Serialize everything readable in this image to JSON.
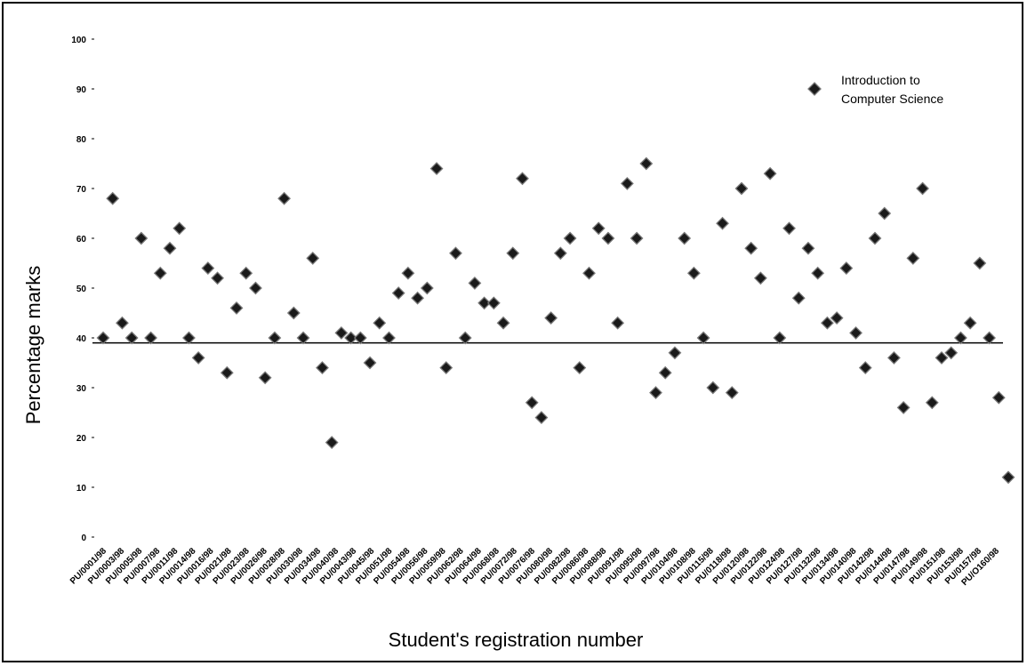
{
  "chart_data": {
    "type": "scatter",
    "title": "",
    "xlabel": "Student's registration number",
    "ylabel": "Percentage marks",
    "ylim": [
      0,
      100
    ],
    "yticks": [
      0,
      10,
      20,
      30,
      40,
      50,
      60,
      70,
      80,
      90,
      100
    ],
    "grid": false,
    "legend_position": "top-right",
    "reference_line": 39,
    "categories": [
      "PU/0001/98",
      "PU/0003/98",
      "PU/0005/98",
      "PU/0007/98",
      "PU/0011/98",
      "PU/0014/98",
      "PU/0016/98",
      "PU/0021/98",
      "PU/0023/98",
      "PU/0026/98",
      "PU/0028/98",
      "PU/0030/98",
      "PU/0034/98",
      "PU/0040/98",
      "PU/0043/98",
      "PU/0045/98",
      "PU/0051/98",
      "PU/0054/98",
      "PU/0056/98",
      "PU/0059/98",
      "PU/0062/98",
      "PU/0064/98",
      "PU/0068/98",
      "PU/0072/98",
      "PU/0076/98",
      "PU/0080/98",
      "PU/0082/98",
      "PU/0086/98",
      "PU/0088/98",
      "PU/0091/98",
      "PU/0095/98",
      "PU/0097/98",
      "PU/0104/98",
      "PU/0108/98",
      "PU/0115/98",
      "PU/0118/98",
      "PU/0120/98",
      "PU/0122/98",
      "PU/0124/98",
      "PU/0127/98",
      "PU/0132/98",
      "PU/0134/98",
      "PU/0140/98",
      "PU/0142/98",
      "PU/0144/98",
      "PU/0147/98",
      "PU/0149/98",
      "PU/0151/98",
      "PU/0153/98",
      "PU/0157/98",
      "PU/O160/98"
    ],
    "series": [
      {
        "name": "Introduction to Computer Science",
        "marker": "diamond",
        "color": "#1a1a1a",
        "points": [
          {
            "x": 1,
            "y": 40
          },
          {
            "x": 2,
            "y": 68
          },
          {
            "x": 3,
            "y": 43
          },
          {
            "x": 4,
            "y": 40
          },
          {
            "x": 5,
            "y": 60
          },
          {
            "x": 6,
            "y": 40
          },
          {
            "x": 7,
            "y": 53
          },
          {
            "x": 8,
            "y": 58
          },
          {
            "x": 9,
            "y": 62
          },
          {
            "x": 10,
            "y": 40
          },
          {
            "x": 11,
            "y": 36
          },
          {
            "x": 12,
            "y": 54
          },
          {
            "x": 13,
            "y": 52
          },
          {
            "x": 14,
            "y": 33
          },
          {
            "x": 15,
            "y": 46
          },
          {
            "x": 16,
            "y": 53
          },
          {
            "x": 17,
            "y": 50
          },
          {
            "x": 18,
            "y": 32
          },
          {
            "x": 19,
            "y": 40
          },
          {
            "x": 20,
            "y": 68
          },
          {
            "x": 21,
            "y": 45
          },
          {
            "x": 22,
            "y": 40
          },
          {
            "x": 23,
            "y": 56
          },
          {
            "x": 24,
            "y": 34
          },
          {
            "x": 25,
            "y": 19
          },
          {
            "x": 26,
            "y": 41
          },
          {
            "x": 27,
            "y": 40
          },
          {
            "x": 28,
            "y": 40
          },
          {
            "x": 29,
            "y": 35
          },
          {
            "x": 30,
            "y": 43
          },
          {
            "x": 31,
            "y": 40
          },
          {
            "x": 32,
            "y": 49
          },
          {
            "x": 33,
            "y": 53
          },
          {
            "x": 34,
            "y": 48
          },
          {
            "x": 35,
            "y": 50
          },
          {
            "x": 36,
            "y": 74
          },
          {
            "x": 37,
            "y": 34
          },
          {
            "x": 38,
            "y": 57
          },
          {
            "x": 39,
            "y": 40
          },
          {
            "x": 40,
            "y": 51
          },
          {
            "x": 41,
            "y": 47
          },
          {
            "x": 42,
            "y": 47
          },
          {
            "x": 43,
            "y": 43
          },
          {
            "x": 44,
            "y": 57
          },
          {
            "x": 45,
            "y": 72
          },
          {
            "x": 46,
            "y": 27
          },
          {
            "x": 47,
            "y": 24
          },
          {
            "x": 48,
            "y": 44
          },
          {
            "x": 49,
            "y": 57
          },
          {
            "x": 50,
            "y": 60
          },
          {
            "x": 51,
            "y": 34
          },
          {
            "x": 52,
            "y": 53
          },
          {
            "x": 53,
            "y": 62
          },
          {
            "x": 54,
            "y": 60
          },
          {
            "x": 55,
            "y": 43
          },
          {
            "x": 56,
            "y": 71
          },
          {
            "x": 57,
            "y": 60
          },
          {
            "x": 58,
            "y": 75
          },
          {
            "x": 59,
            "y": 29
          },
          {
            "x": 60,
            "y": 33
          },
          {
            "x": 61,
            "y": 37
          },
          {
            "x": 62,
            "y": 60
          },
          {
            "x": 63,
            "y": 53
          },
          {
            "x": 64,
            "y": 40
          },
          {
            "x": 65,
            "y": 30
          },
          {
            "x": 66,
            "y": 63
          },
          {
            "x": 67,
            "y": 29
          },
          {
            "x": 68,
            "y": 70
          },
          {
            "x": 69,
            "y": 58
          },
          {
            "x": 70,
            "y": 52
          },
          {
            "x": 71,
            "y": 73
          },
          {
            "x": 72,
            "y": 40
          },
          {
            "x": 73,
            "y": 62
          },
          {
            "x": 74,
            "y": 48
          },
          {
            "x": 75,
            "y": 58
          },
          {
            "x": 76,
            "y": 53
          },
          {
            "x": 77,
            "y": 43
          },
          {
            "x": 78,
            "y": 44
          },
          {
            "x": 79,
            "y": 54
          },
          {
            "x": 80,
            "y": 41
          },
          {
            "x": 81,
            "y": 34
          },
          {
            "x": 82,
            "y": 60
          },
          {
            "x": 83,
            "y": 65
          },
          {
            "x": 84,
            "y": 36
          },
          {
            "x": 85,
            "y": 26
          },
          {
            "x": 86,
            "y": 56
          },
          {
            "x": 87,
            "y": 70
          },
          {
            "x": 88,
            "y": 27
          },
          {
            "x": 89,
            "y": 36
          },
          {
            "x": 90,
            "y": 37
          },
          {
            "x": 91,
            "y": 40
          },
          {
            "x": 92,
            "y": 43
          },
          {
            "x": 93,
            "y": 55
          },
          {
            "x": 94,
            "y": 40
          },
          {
            "x": 95,
            "y": 28
          },
          {
            "x": 96,
            "y": 12
          }
        ]
      }
    ]
  }
}
